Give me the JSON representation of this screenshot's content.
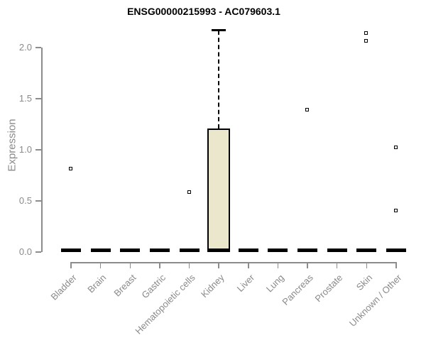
{
  "title": "ENSG00000215993 - AC079603.1",
  "chart_data": {
    "type": "boxplot",
    "title": "ENSG00000215993 - AC079603.1",
    "xlabel": "",
    "ylabel": "Expression",
    "ylim": [
      0.0,
      2.2
    ],
    "yticks": [
      0.0,
      0.5,
      1.0,
      1.5,
      2.0
    ],
    "grid": false,
    "categories": [
      "Bladder",
      "Brain",
      "Breast",
      "Gastric",
      "Hematopoietic cells",
      "Kidney",
      "Liver",
      "Lung",
      "Pancreas",
      "Prostate",
      "Skin",
      "Unknown / Other"
    ],
    "boxes": [
      {
        "category": "Bladder",
        "whisker_low": 0,
        "q1": 0,
        "median": 0,
        "q3": 0,
        "whisker_high": 0,
        "outliers": [
          0.81
        ]
      },
      {
        "category": "Brain",
        "whisker_low": 0,
        "q1": 0,
        "median": 0,
        "q3": 0,
        "whisker_high": 0,
        "outliers": []
      },
      {
        "category": "Breast",
        "whisker_low": 0,
        "q1": 0,
        "median": 0,
        "q3": 0,
        "whisker_high": 0,
        "outliers": []
      },
      {
        "category": "Gastric",
        "whisker_low": 0,
        "q1": 0,
        "median": 0,
        "q3": 0,
        "whisker_high": 0,
        "outliers": []
      },
      {
        "category": "Hematopoietic cells",
        "whisker_low": 0,
        "q1": 0,
        "median": 0,
        "q3": 0,
        "whisker_high": 0,
        "outliers": [
          0.58
        ]
      },
      {
        "category": "Kidney",
        "whisker_low": 0,
        "q1": 0,
        "median": 0,
        "q3": 1.21,
        "whisker_high": 2.17,
        "outliers": []
      },
      {
        "category": "Liver",
        "whisker_low": 0,
        "q1": 0,
        "median": 0,
        "q3": 0,
        "whisker_high": 0,
        "outliers": []
      },
      {
        "category": "Lung",
        "whisker_low": 0,
        "q1": 0,
        "median": 0,
        "q3": 0,
        "whisker_high": 0,
        "outliers": []
      },
      {
        "category": "Pancreas",
        "whisker_low": 0,
        "q1": 0,
        "median": 0,
        "q3": 0,
        "whisker_high": 0,
        "outliers": [
          1.39
        ]
      },
      {
        "category": "Prostate",
        "whisker_low": 0,
        "q1": 0,
        "median": 0,
        "q3": 0,
        "whisker_high": 0,
        "outliers": []
      },
      {
        "category": "Skin",
        "whisker_low": 0,
        "q1": 0,
        "median": 0,
        "q3": 0,
        "whisker_high": 0,
        "outliers": [
          2.14,
          2.06
        ]
      },
      {
        "category": "Unknown / Other",
        "whisker_low": 0,
        "q1": 0,
        "median": 0,
        "q3": 0,
        "whisker_high": 0,
        "outliers": [
          1.02,
          0.4
        ]
      }
    ],
    "colors": {
      "box_fill": "#ebe7cc",
      "box_border": "#000000",
      "median": "#000000",
      "axis_line": "#8c8c8c",
      "axis_text": "#8a8a8a",
      "title_text": "#000000"
    },
    "legend": null
  }
}
